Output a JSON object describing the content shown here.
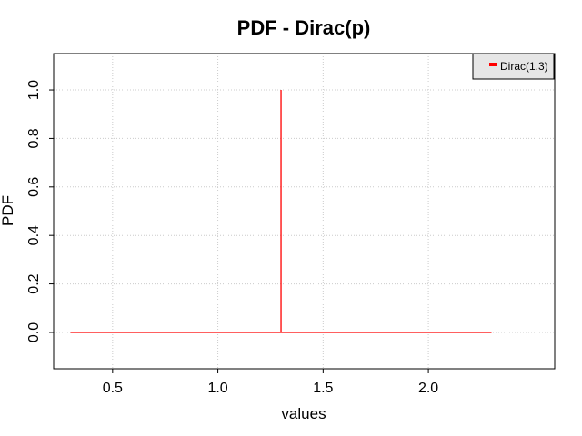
{
  "chart_data": {
    "type": "line",
    "title": "PDF - Dirac(p)",
    "xlabel": "values",
    "ylabel": "PDF",
    "xlim": [
      0.22,
      2.6
    ],
    "ylim": [
      -0.15,
      1.15
    ],
    "xticks": [
      0.5,
      1.0,
      1.5,
      2.0
    ],
    "xtick_labels": [
      "0.5",
      "1.0",
      "1.5",
      "2.0"
    ],
    "yticks": [
      0.0,
      0.2,
      0.4,
      0.6,
      0.8,
      1.0
    ],
    "ytick_labels": [
      "0.0",
      "0.2",
      "0.4",
      "0.6",
      "0.8",
      "1.0"
    ],
    "grid": true,
    "legend_position": "top-right",
    "series": [
      {
        "name": "Dirac(1.3)",
        "color": "#ff0000",
        "x": [
          0.3,
          1.3,
          1.3,
          1.3,
          2.3
        ],
        "y": [
          0.0,
          0.0,
          1.0,
          0.0,
          0.0
        ]
      }
    ]
  }
}
